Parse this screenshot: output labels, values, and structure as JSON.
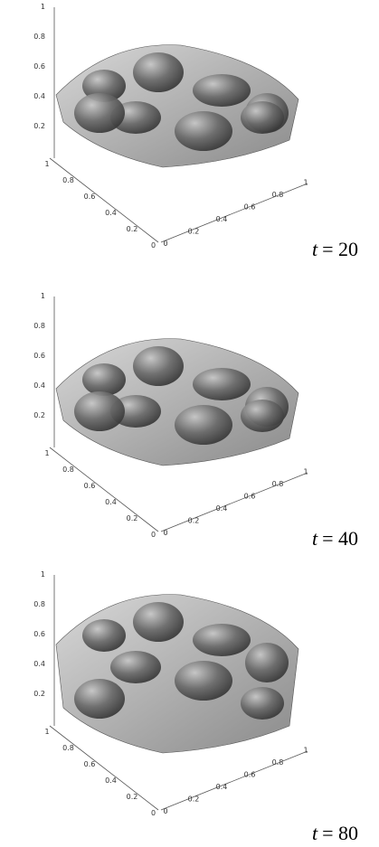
{
  "panels": [
    {
      "z_ticks": [
        "1",
        "0.8",
        "0.6",
        "0.4",
        "0.2"
      ],
      "x_ticks": [
        "1",
        "0.8",
        "0.6",
        "0.4",
        "0.2",
        "0"
      ],
      "y_ticks": [
        "0",
        "0.2",
        "0.4",
        "0.6",
        "0.8",
        "1"
      ],
      "variable": "t",
      "equals": "= 20"
    },
    {
      "z_ticks": [
        "1",
        "0.8",
        "0.6",
        "0.4",
        "0.2"
      ],
      "x_ticks": [
        "1",
        "0.8",
        "0.6",
        "0.4",
        "0.2",
        "0"
      ],
      "y_ticks": [
        "0",
        "0.2",
        "0.4",
        "0.6",
        "0.8",
        "1"
      ],
      "variable": "t",
      "equals": "= 40"
    },
    {
      "z_ticks": [
        "1",
        "0.8",
        "0.6",
        "0.4",
        "0.2"
      ],
      "x_ticks": [
        "1",
        "0.8",
        "0.6",
        "0.4",
        "0.2",
        "0"
      ],
      "y_ticks": [
        "0",
        "0.2",
        "0.4",
        "0.6",
        "0.8",
        "1"
      ],
      "variable": "t",
      "equals": "= 80"
    }
  ]
}
